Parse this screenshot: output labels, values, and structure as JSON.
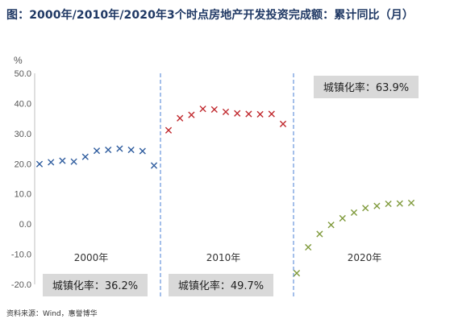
{
  "title": "图：2000年/2010年/2020年3个时点房地产开发投资完成额：累计同比（月）",
  "source": "资料来源：Wind，惠誉博华",
  "chart_data": {
    "type": "scatter",
    "y_unit": "%",
    "ylim": [
      -20,
      50
    ],
    "y_ticks": [
      "50.0",
      "40.0",
      "30.0",
      "20.0",
      "10.0",
      "0.0",
      "-10.0",
      "-20.0"
    ],
    "grid": false,
    "series": [
      {
        "name": "2000年",
        "color": "#2e5c9e",
        "urbanization": "城镇化率：36.2%",
        "values": [
          19.9,
          20.5,
          21.0,
          20.7,
          22.3,
          24.3,
          24.6,
          25.0,
          24.6,
          24.2,
          19.4
        ]
      },
      {
        "name": "2010年",
        "color": "#c0282d",
        "urbanization": "城镇化率：49.7%",
        "values": [
          31.1,
          35.1,
          36.2,
          38.2,
          38.0,
          37.2,
          36.7,
          36.5,
          36.4,
          36.5,
          33.2
        ]
      },
      {
        "name": "2020年",
        "color": "#7f9a3b",
        "urbanization": "城镇化率：63.9%",
        "values": [
          -16.3,
          -7.7,
          -3.3,
          -0.3,
          1.9,
          3.8,
          5.3,
          6.0,
          6.7,
          6.8,
          7.0
        ]
      }
    ]
  }
}
